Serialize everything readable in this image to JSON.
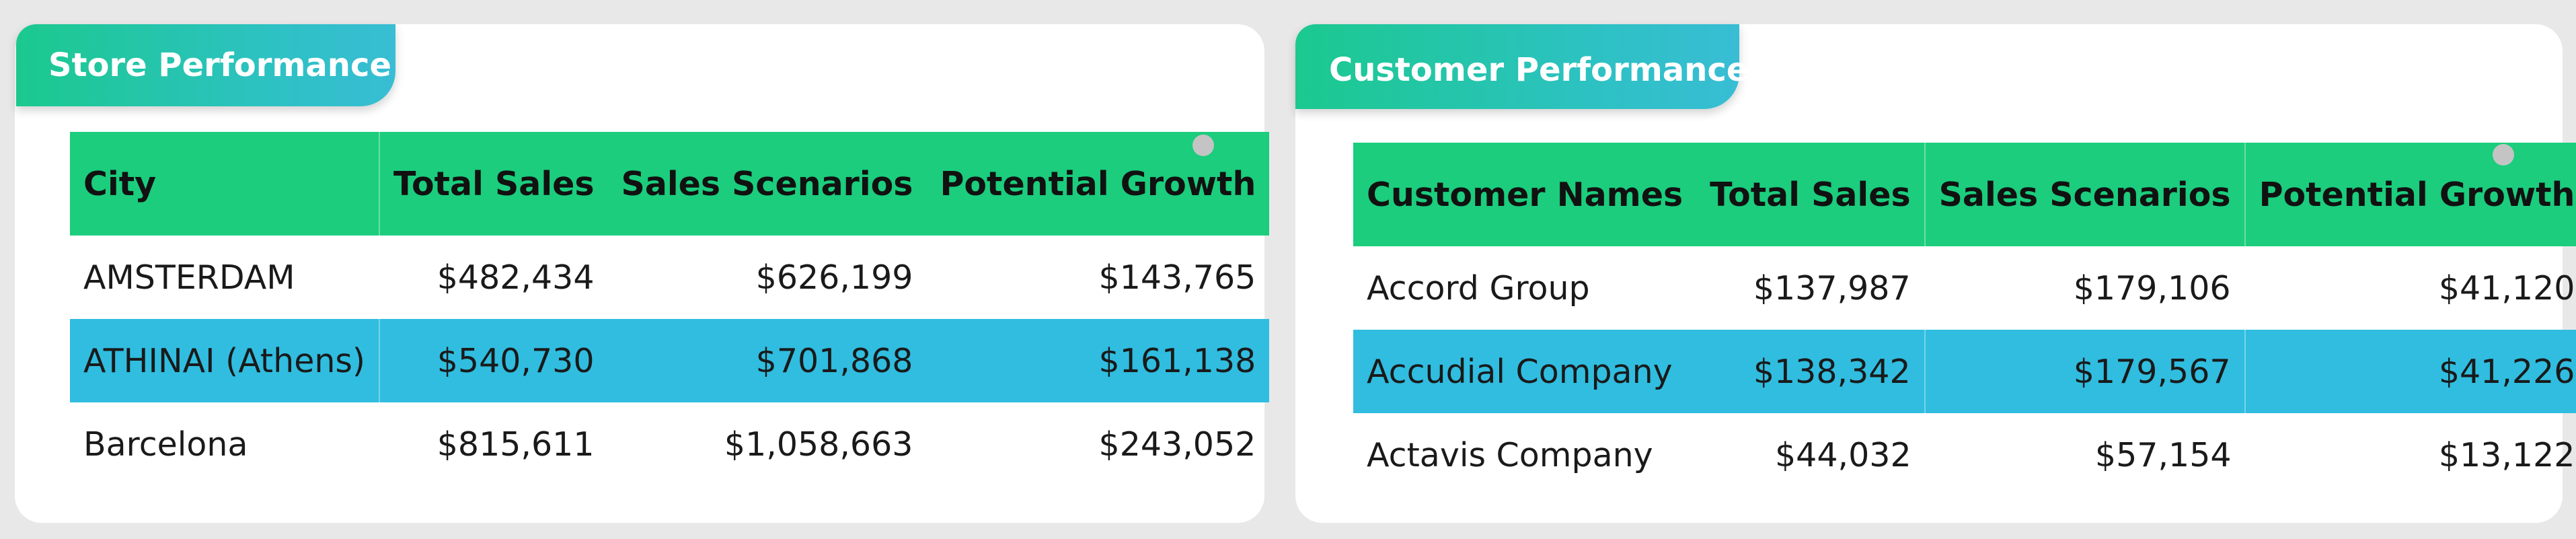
{
  "store_panel": {
    "title": "Store Performance",
    "columns": [
      "City",
      "Total Sales",
      "Sales Scenarios",
      "Potential Growth"
    ],
    "rows": [
      [
        "AMSTERDAM",
        "$482,434",
        "$626,199",
        "$143,765"
      ],
      [
        "ATHINAI (Athens)",
        "$540,730",
        "$701,868",
        "$161,138"
      ],
      [
        "Barcelona",
        "$815,611",
        "$1,058,663",
        "$243,052"
      ]
    ],
    "selected_row": 1
  },
  "customer_panel": {
    "title": "Customer Performance",
    "columns": [
      "Customer Names",
      "Total Sales",
      "Sales Scenarios",
      "Potential Growth"
    ],
    "rows": [
      [
        "Accord Group",
        "$137,987",
        "$179,106",
        "$41,120"
      ],
      [
        "Accudial Company",
        "$138,342",
        "$179,567",
        "$41,226"
      ],
      [
        "Actavis Company",
        "$44,032",
        "$57,154",
        "$13,122"
      ]
    ],
    "selected_row": 1
  },
  "colors": {
    "header": "#1bcd7d",
    "selected_row": "#30bde0",
    "tab_gradient_start": "#1bc98e",
    "tab_gradient_end": "#38bdd4"
  }
}
